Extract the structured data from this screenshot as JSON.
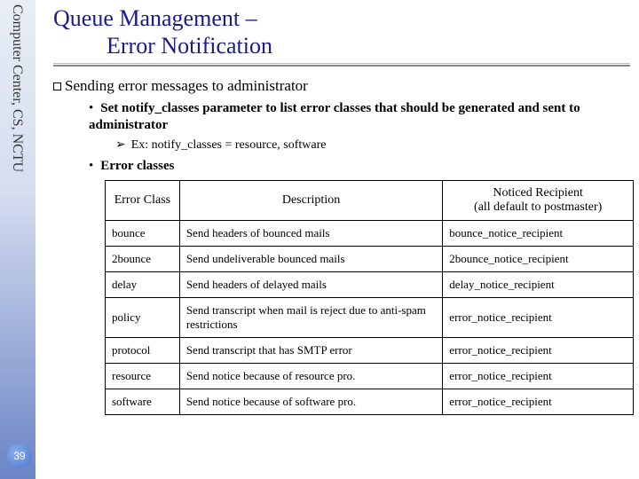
{
  "sidebar": {
    "label": "Computer Center, CS, NCTU",
    "pageNumber": "39"
  },
  "title": {
    "line1": "Queue Management –",
    "line2": "Error Notification"
  },
  "section": "Sending error messages to administrator",
  "bullet1": "Set notify_classes parameter to list error classes that should be generated and sent to administrator",
  "example": "Ex: notify_classes = resource, software",
  "bullet2": "Error classes",
  "table": {
    "headers": {
      "c1": "Error Class",
      "c2": "Description",
      "c3": "Noticed Recipient\n(all default to postmaster)"
    },
    "rows": [
      {
        "c1": "bounce",
        "c2": "Send headers of bounced mails",
        "c3": "bounce_notice_recipient"
      },
      {
        "c1": "2bounce",
        "c2": "Send undeliverable bounced mails",
        "c3": "2bounce_notice_recipient"
      },
      {
        "c1": "delay",
        "c2": "Send headers of delayed mails",
        "c3": "delay_notice_recipient"
      },
      {
        "c1": "policy",
        "c2": "Send transcript when mail is reject due to anti-spam restrictions",
        "c3": "error_notice_recipient"
      },
      {
        "c1": "protocol",
        "c2": "Send transcript that has SMTP error",
        "c3": "error_notice_recipient"
      },
      {
        "c1": "resource",
        "c2": "Send notice because of resource pro.",
        "c3": "error_notice_recipient"
      },
      {
        "c1": "software",
        "c2": "Send notice because of software pro.",
        "c3": "error_notice_recipient"
      }
    ]
  },
  "style": {
    "titleColor": "#1a1a8a",
    "borderColor": "#000000",
    "sidebarGradientTop": "#e8edf5",
    "sidebarGradientBottom": "#6a84c5"
  }
}
